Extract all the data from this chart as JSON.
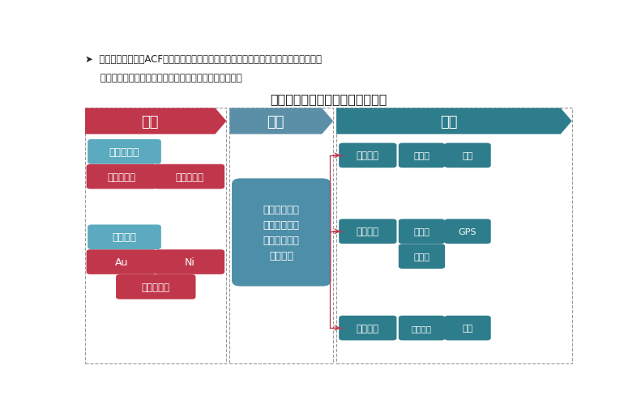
{
  "title": "异方性导电胶膜产业链结构示意图",
  "line1": "➤  异方性导电胶膜（ACF）的上游为树脂黏着剂、导电粒子等原材料，中游为加工制造企",
  "line2": "     业，下游为移动设备、电脑设备、消费电子等终端应用。",
  "upstream_label": "上游",
  "midstream_label": "中游",
  "downstream_label": "下游",
  "box_shuzhi": "树脂黏着剂",
  "box_rexing": "热塑性树脂",
  "box_reguxing": "热固性树脂",
  "box_daodian": "导电粒子",
  "box_au": "Au",
  "box_ni": "Ni",
  "box_yinjin": "銀及锡合金",
  "box_mid": "加工流程一般\n分为搅拌、涂\n层、分割、卷\n带、封装",
  "box_diannao": "电脑设备",
  "box_dayinji": "打印机",
  "box_yingpan": "硬盘",
  "box_xiaofei": "消费电子",
  "box_dianshiji": "电视机",
  "box_gps": "GPS",
  "box_dianzishu": "电子书",
  "box_yidong": "移动设备",
  "box_shuma": "数码相机",
  "box_shouji": "手机",
  "upstream_header_color": "#c0364a",
  "midstream_header_color": "#5b8fa8",
  "downstream_header_color": "#2e7d8c",
  "upstream_box_red": "#c0364a",
  "upstream_box_teal": "#5baabf",
  "midstream_box_color": "#4d8ea8",
  "downstream_box_color": "#2e7d8c",
  "bg_color": "#ffffff",
  "text_color": "#222222",
  "dash_color": "#aaaaaa",
  "connector_color": "#c0364a"
}
